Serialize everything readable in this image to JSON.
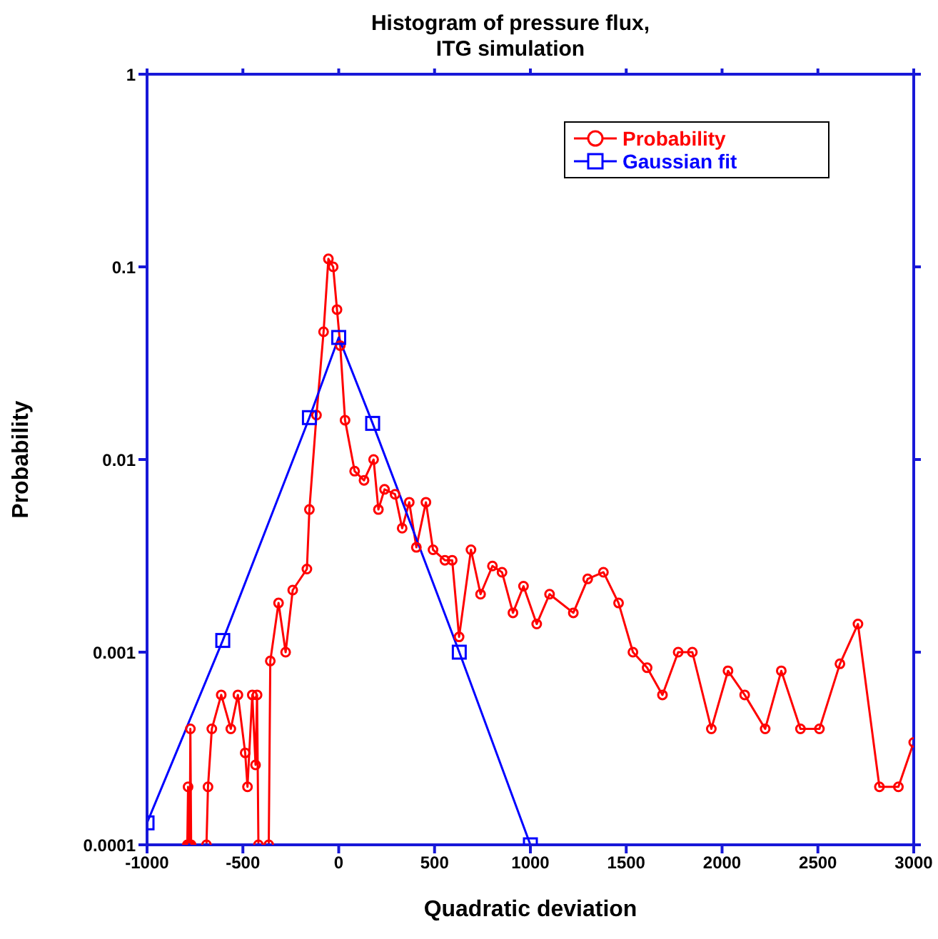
{
  "chart_data": {
    "type": "line",
    "title": "Histogram of pressure flux,\nITG simulation",
    "xlabel": "Quadratic deviation",
    "ylabel": "Probability",
    "log": "y",
    "xlim": [
      -1000,
      3000
    ],
    "xticks": [
      -1000,
      -500,
      0,
      500,
      1000,
      1500,
      2000,
      2500,
      3000
    ],
    "ylim": [
      0.0001,
      1
    ],
    "yticks": [
      0.0001,
      0.001,
      0.01,
      0.1,
      1
    ],
    "grid": false,
    "legend": "top right",
    "line_style": "solid",
    "series": [
      {
        "name": "Probability",
        "color": "#ff0000",
        "marker": "circle",
        "x": [
          -790,
          -786,
          -782,
          -780,
          -777,
          -774,
          -770,
          -730,
          -690,
          -682,
          -662,
          -613,
          -563,
          -526,
          -488,
          -476,
          -451,
          -434,
          -426,
          -419,
          -390,
          -365,
          -357,
          -314,
          -277,
          -240,
          -166,
          -153,
          -116,
          -79,
          -54,
          -29,
          -9,
          8,
          33,
          83,
          132,
          182,
          207,
          239,
          294,
          331,
          368,
          405,
          455,
          492,
          554,
          592,
          628,
          690,
          740,
          802,
          852,
          909,
          964,
          1033,
          1100,
          1224,
          1299,
          1381,
          1460,
          1535,
          1609,
          1689,
          1771,
          1845,
          1944,
          2031,
          2118,
          2225,
          2309,
          2409,
          2508,
          2615,
          2709,
          2821,
          2920,
          3000
        ],
        "values": [
          0.0001,
          0.0002,
          0.0001,
          null,
          0.0001,
          0.0004,
          0.0001,
          null,
          0.0001,
          0.0002,
          0.0004,
          0.0006,
          0.0004,
          0.0006,
          0.0003,
          0.0002,
          0.0006,
          0.00026,
          0.0006,
          0.0001,
          null,
          0.0001,
          0.0009,
          0.0018,
          0.001,
          0.0021,
          0.0027,
          0.0055,
          0.017,
          0.046,
          0.11,
          0.1,
          0.06,
          0.039,
          0.016,
          0.0087,
          0.0078,
          0.01,
          0.0055,
          0.007,
          0.0066,
          0.0044,
          0.006,
          0.0035,
          0.006,
          0.0034,
          0.003,
          0.003,
          0.0012,
          0.0034,
          0.002,
          0.0028,
          0.0026,
          0.0016,
          0.0022,
          0.0014,
          0.002,
          0.0016,
          0.0024,
          0.0026,
          0.0018,
          0.001,
          0.00083,
          0.0006,
          0.001,
          0.001,
          0.0004,
          0.0008,
          0.0006,
          0.0004,
          0.0008,
          0.0004,
          0.0004,
          0.00087,
          0.0014,
          0.0002,
          0.0002,
          0.00034
        ]
      },
      {
        "name": "Gaussian fit",
        "color": "#0000ff",
        "marker": "square",
        "x": [
          -1000,
          -605,
          -153,
          0,
          177,
          629,
          1000
        ],
        "values": [
          0.00013,
          0.00115,
          0.0165,
          0.043,
          0.0154,
          0.001,
          0.0001
        ]
      }
    ]
  }
}
